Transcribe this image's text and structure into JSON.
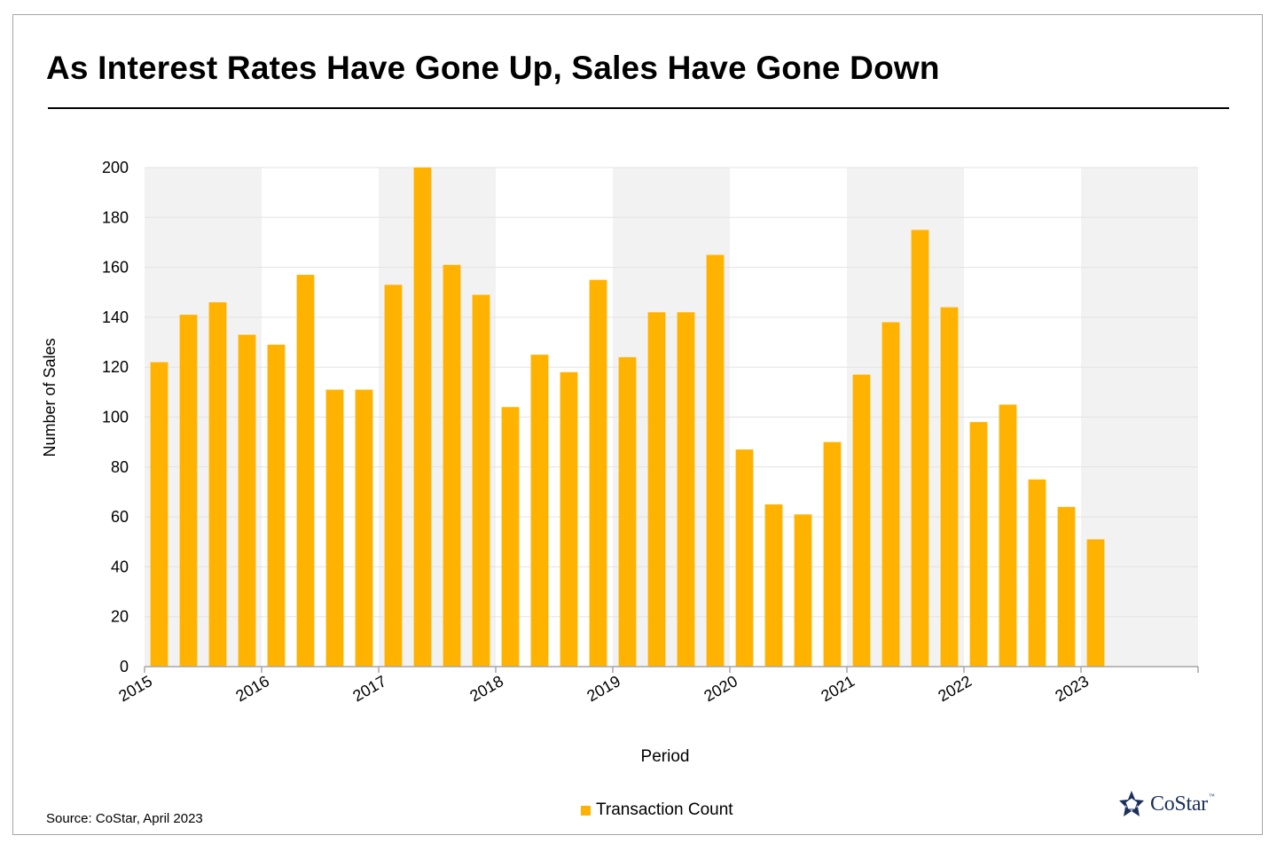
{
  "title": "As Interest Rates Have Gone Up, Sales Have Gone Down",
  "source": "Source: CoStar, April 2023",
  "logo": {
    "text": "CoStar",
    "tm": "™",
    "icon": "costar-star-icon",
    "color": "#1b2f5b"
  },
  "legend": {
    "label": "Transaction Count",
    "color": "#ffb300"
  },
  "colors": {
    "bar": "#ffb300",
    "band": "#f2f2f2",
    "grid": "#e3e3e3",
    "axis": "#a6a6a6"
  },
  "chart_data": {
    "type": "bar",
    "title": "As Interest Rates Have Gone Up, Sales Have Gone Down",
    "xlabel": "Period",
    "ylabel": "Number  of Sales",
    "ylim": [
      0,
      200
    ],
    "yticks": [
      0,
      20,
      40,
      60,
      80,
      100,
      120,
      140,
      160,
      180,
      200
    ],
    "year_labels": [
      "2015",
      "2016",
      "2017",
      "2018",
      "2019",
      "2020",
      "2021",
      "2022",
      "2023"
    ],
    "shaded_years": [
      "2015",
      "2017",
      "2019",
      "2021",
      "2023"
    ],
    "grid": true,
    "legend_position": "bottom-center",
    "categories": [
      "2015 Q1",
      "2015 Q2",
      "2015 Q3",
      "2015 Q4",
      "2016 Q1",
      "2016 Q2",
      "2016 Q3",
      "2016 Q4",
      "2017 Q1",
      "2017 Q2",
      "2017 Q3",
      "2017 Q4",
      "2018 Q1",
      "2018 Q2",
      "2018 Q3",
      "2018 Q4",
      "2019 Q1",
      "2019 Q2",
      "2019 Q3",
      "2019 Q4",
      "2020 Q1",
      "2020 Q2",
      "2020 Q3",
      "2020 Q4",
      "2021 Q1",
      "2021 Q2",
      "2021 Q3",
      "2021 Q4",
      "2022 Q1",
      "2022 Q2",
      "2022 Q3",
      "2022 Q4",
      "2023 Q1"
    ],
    "series": [
      {
        "name": "Transaction Count",
        "values": [
          122,
          141,
          146,
          133,
          129,
          157,
          111,
          111,
          153,
          200,
          161,
          149,
          104,
          125,
          118,
          155,
          124,
          142,
          142,
          165,
          87,
          65,
          61,
          90,
          117,
          138,
          175,
          144,
          98,
          105,
          75,
          64,
          51
        ]
      }
    ]
  }
}
